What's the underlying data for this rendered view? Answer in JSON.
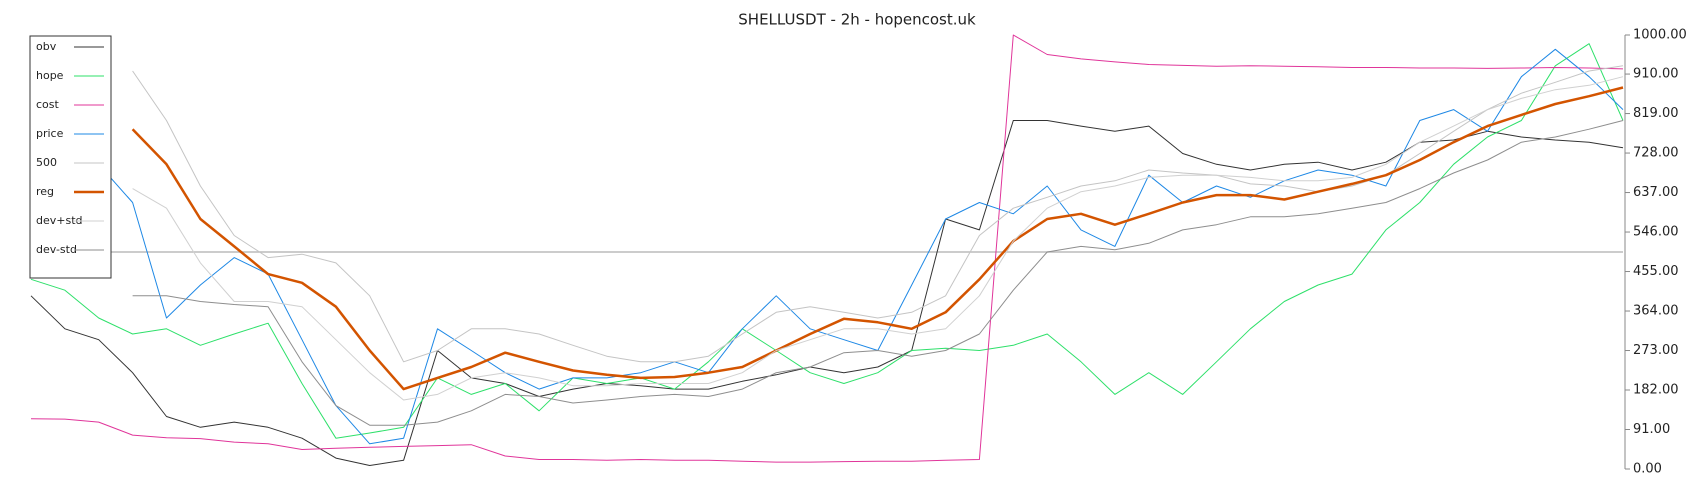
{
  "chart_data": {
    "type": "line",
    "title": "SHELLUSDT - 2h - hopencost.uk",
    "ylim": [
      0,
      1000
    ],
    "yticks": [
      {
        "value": 0,
        "label": "0.00"
      },
      {
        "value": 91,
        "label": "91.00"
      },
      {
        "value": 182,
        "label": "182.00"
      },
      {
        "value": 273,
        "label": "273.00"
      },
      {
        "value": 364,
        "label": "364.00"
      },
      {
        "value": 455,
        "label": "455.00"
      },
      {
        "value": 546,
        "label": "546.00"
      },
      {
        "value": 637,
        "label": "637.00"
      },
      {
        "value": 728,
        "label": "728.00"
      },
      {
        "value": 819,
        "label": "819.00"
      },
      {
        "value": 910,
        "label": "910.00"
      },
      {
        "value": 1000,
        "label": "1000.00"
      }
    ],
    "hline": 500,
    "legend": "upper-left",
    "series": [
      {
        "name": "obv",
        "color": "#333333",
        "width": 1,
        "values": [
          399,
          323,
          298,
          222,
          121,
          96,
          108,
          96,
          71,
          25,
          8,
          20,
          273,
          210,
          197,
          167,
          184,
          197,
          192,
          184,
          184,
          202,
          217,
          235,
          222,
          235,
          273,
          576,
          551,
          803,
          803,
          790,
          778,
          790,
          727,
          702,
          689,
          702,
          707,
          689,
          707,
          753,
          758,
          778,
          765,
          758,
          753,
          740
        ]
      },
      {
        "name": "hope",
        "color": "#2ee06a",
        "width": 1,
        "values": [
          437,
          412,
          348,
          311,
          323,
          285,
          311,
          336,
          197,
          71,
          83,
          96,
          210,
          172,
          197,
          134,
          210,
          197,
          210,
          184,
          247,
          323,
          273,
          222,
          197,
          222,
          273,
          278,
          273,
          285,
          311,
          247,
          172,
          222,
          172,
          247,
          323,
          386,
          424,
          449,
          551,
          614,
          702,
          765,
          803,
          929,
          980,
          803
        ]
      },
      {
        "name": "cost",
        "color": "#e0359a",
        "width": 1,
        "values": [
          116,
          115,
          108,
          78,
          72,
          70,
          62,
          58,
          45,
          48,
          50,
          52,
          54,
          56,
          30,
          22,
          22,
          20,
          22,
          20,
          20,
          18,
          16,
          16,
          17,
          18,
          18,
          20,
          22,
          1000,
          955,
          945,
          938,
          932,
          930,
          928,
          929,
          928,
          927,
          925,
          925,
          924,
          924,
          923,
          924,
          925,
          924,
          922
        ]
      },
      {
        "name": "price",
        "color": "#1e88e5",
        "width": 1,
        "values": [
          null,
          null,
          702,
          614,
          348,
          424,
          487,
          449,
          298,
          146,
          58,
          71,
          323,
          273,
          222,
          184,
          210,
          210,
          222,
          247,
          222,
          323,
          399,
          323,
          298,
          273,
          424,
          576,
          614,
          588,
          652,
          551,
          513,
          677,
          614,
          652,
          626,
          664,
          689,
          677,
          652,
          803,
          828,
          778,
          904,
          967,
          904,
          828
        ]
      },
      {
        "name": "500",
        "color": "#c4c4c4",
        "width": 1,
        "values": [
          null,
          null,
          null,
          917,
          803,
          652,
          538,
          487,
          495,
          475,
          399,
          247,
          273,
          323,
          323,
          311,
          285,
          260,
          247,
          247,
          260,
          311,
          361,
          374,
          361,
          348,
          361,
          399,
          538,
          601,
          626,
          652,
          664,
          689,
          682,
          677,
          657,
          652,
          639,
          652,
          677,
          727,
          778,
          828,
          866,
          891,
          917,
          929
        ]
      },
      {
        "name": "reg",
        "color": "#d35400",
        "width": 2.5,
        "values": [
          null,
          null,
          null,
          783,
          702,
          576,
          513,
          449,
          429,
          374,
          273,
          184,
          210,
          235,
          268,
          247,
          227,
          217,
          210,
          212,
          222,
          235,
          273,
          311,
          346,
          338,
          323,
          361,
          437,
          525,
          576,
          588,
          563,
          588,
          614,
          631,
          631,
          621,
          639,
          657,
          677,
          712,
          753,
          790,
          816,
          841,
          859,
          879
        ]
      },
      {
        "name": "dev+std",
        "color": "#d0d0d0",
        "width": 1,
        "values": [
          null,
          null,
          null,
          646,
          601,
          475,
          386,
          386,
          374,
          298,
          222,
          159,
          172,
          210,
          222,
          210,
          192,
          192,
          197,
          197,
          197,
          222,
          273,
          298,
          323,
          323,
          311,
          323,
          399,
          525,
          601,
          639,
          652,
          672,
          677,
          677,
          672,
          664,
          664,
          672,
          702,
          753,
          790,
          828,
          854,
          874,
          884,
          904
        ]
      },
      {
        "name": "dev-std",
        "color": "#8e8e8e",
        "width": 1,
        "values": [
          null,
          null,
          null,
          399,
          399,
          386,
          379,
          374,
          247,
          146,
          101,
          101,
          108,
          134,
          172,
          167,
          152,
          159,
          167,
          172,
          167,
          184,
          222,
          235,
          268,
          273,
          260,
          273,
          311,
          412,
          500,
          513,
          505,
          520,
          551,
          563,
          581,
          581,
          588,
          601,
          614,
          646,
          682,
          712,
          753,
          765,
          783,
          803
        ]
      }
    ]
  }
}
